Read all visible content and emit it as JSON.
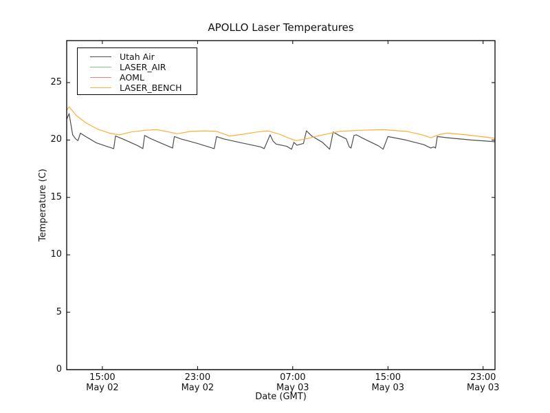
{
  "chart_data": {
    "type": "line",
    "title": "APOLLO Laser Temperatures",
    "xlabel": "Date (GMT)",
    "ylabel": "Temperature (C)",
    "x_unit": "hours since May 02 12:00 GMT",
    "xlim": [
      0,
      36
    ],
    "ylim": [
      0,
      28.66
    ],
    "grid": false,
    "legend_position": "upper left",
    "yticks": [
      {
        "v": 0,
        "label": "0"
      },
      {
        "v": 5,
        "label": "5"
      },
      {
        "v": 10,
        "label": "10"
      },
      {
        "v": 15,
        "label": "15"
      },
      {
        "v": 20,
        "label": "20"
      },
      {
        "v": 25,
        "label": "25"
      }
    ],
    "xticks": [
      {
        "t": 3,
        "time": "15:00",
        "date": "May 02"
      },
      {
        "t": 11,
        "time": "23:00",
        "date": "May 02"
      },
      {
        "t": 19,
        "time": "07:00",
        "date": "May 03"
      },
      {
        "t": 27,
        "time": "15:00",
        "date": "May 03"
      },
      {
        "t": 35,
        "time": "23:00",
        "date": "May 03"
      }
    ],
    "series": [
      {
        "name": "Utah Air",
        "color": "#4d4d4d",
        "points": [
          [
            0,
            21.8
          ],
          [
            0.2,
            22.3
          ],
          [
            0.5,
            20.45
          ],
          [
            0.75,
            20.1
          ],
          [
            0.95,
            19.95
          ],
          [
            1.15,
            20.6
          ],
          [
            1.6,
            20.3
          ],
          [
            2.5,
            19.75
          ],
          [
            3.5,
            19.4
          ],
          [
            3.95,
            19.25
          ],
          [
            4.1,
            20.35
          ],
          [
            4.8,
            20.05
          ],
          [
            6.0,
            19.5
          ],
          [
            6.4,
            19.25
          ],
          [
            6.55,
            20.4
          ],
          [
            7.0,
            20.15
          ],
          [
            8.0,
            19.7
          ],
          [
            8.9,
            19.3
          ],
          [
            9.05,
            20.3
          ],
          [
            9.6,
            20.1
          ],
          [
            11.0,
            19.7
          ],
          [
            12.4,
            19.25
          ],
          [
            12.6,
            20.3
          ],
          [
            13.2,
            20.1
          ],
          [
            14.5,
            19.8
          ],
          [
            16.3,
            19.4
          ],
          [
            16.6,
            19.25
          ],
          [
            17.1,
            20.45
          ],
          [
            17.35,
            19.9
          ],
          [
            17.6,
            19.65
          ],
          [
            18.5,
            19.45
          ],
          [
            18.9,
            19.2
          ],
          [
            19.1,
            19.8
          ],
          [
            19.35,
            19.55
          ],
          [
            19.9,
            19.7
          ],
          [
            20.15,
            20.8
          ],
          [
            20.6,
            20.35
          ],
          [
            21.5,
            19.8
          ],
          [
            22.1,
            19.2
          ],
          [
            22.4,
            20.7
          ],
          [
            22.9,
            20.4
          ],
          [
            23.5,
            20.1
          ],
          [
            23.75,
            19.4
          ],
          [
            23.9,
            19.3
          ],
          [
            24.15,
            20.4
          ],
          [
            24.35,
            20.45
          ],
          [
            25.0,
            20.1
          ],
          [
            26.2,
            19.5
          ],
          [
            26.6,
            19.2
          ],
          [
            27.0,
            20.3
          ],
          [
            28.5,
            20.0
          ],
          [
            30.0,
            19.6
          ],
          [
            30.6,
            19.3
          ],
          [
            30.85,
            19.4
          ],
          [
            31.0,
            19.3
          ],
          [
            31.15,
            20.3
          ],
          [
            32.0,
            20.2
          ],
          [
            34.0,
            20.0
          ],
          [
            36.0,
            19.85
          ]
        ]
      },
      {
        "name": "LASER_AIR",
        "color": "#7fc87f",
        "points": [
          [
            0,
            0
          ],
          [
            36,
            0
          ]
        ]
      },
      {
        "name": "AOML",
        "color": "#ef7f7f",
        "points": [
          [
            0,
            0
          ],
          [
            36,
            0
          ]
        ]
      },
      {
        "name": "LASER_BENCH",
        "color": "#fcae38",
        "points": [
          [
            0,
            22.6
          ],
          [
            0.2,
            22.9
          ],
          [
            0.8,
            22.15
          ],
          [
            1.6,
            21.5
          ],
          [
            2.6,
            20.95
          ],
          [
            3.6,
            20.6
          ],
          [
            4.4,
            20.45
          ],
          [
            5.4,
            20.7
          ],
          [
            6.6,
            20.85
          ],
          [
            7.6,
            20.9
          ],
          [
            8.6,
            20.7
          ],
          [
            9.3,
            20.55
          ],
          [
            10.4,
            20.75
          ],
          [
            11.6,
            20.8
          ],
          [
            12.6,
            20.75
          ],
          [
            13.7,
            20.35
          ],
          [
            14.8,
            20.5
          ],
          [
            16.0,
            20.7
          ],
          [
            16.9,
            20.8
          ],
          [
            17.9,
            20.5
          ],
          [
            18.7,
            20.15
          ],
          [
            19.3,
            19.95
          ],
          [
            20.1,
            20.1
          ],
          [
            21.1,
            20.35
          ],
          [
            22.9,
            20.75
          ],
          [
            24.6,
            20.85
          ],
          [
            26.6,
            20.9
          ],
          [
            28.6,
            20.75
          ],
          [
            29.9,
            20.45
          ],
          [
            30.6,
            20.2
          ],
          [
            31.4,
            20.5
          ],
          [
            32.0,
            20.6
          ],
          [
            33.6,
            20.45
          ],
          [
            36.0,
            20.15
          ]
        ]
      }
    ]
  }
}
